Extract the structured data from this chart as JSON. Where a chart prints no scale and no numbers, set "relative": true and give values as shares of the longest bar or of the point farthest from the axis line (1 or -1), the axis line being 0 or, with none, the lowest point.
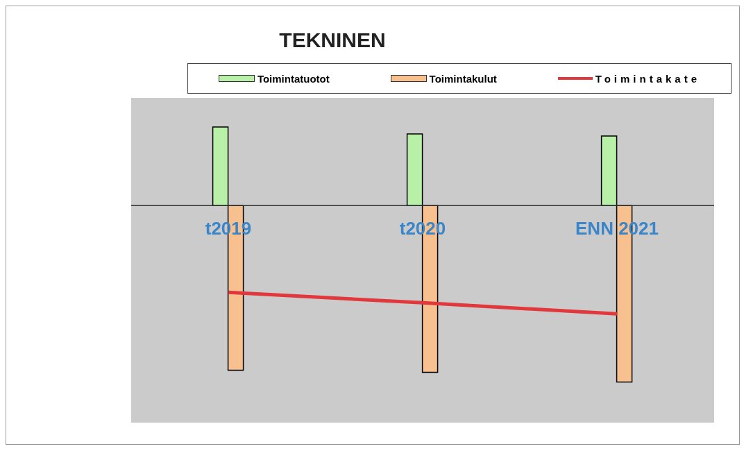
{
  "chart_data": {
    "type": "bar",
    "title": "TEKNINEN",
    "relative": true,
    "categories": [
      "t2019",
      "t2020",
      "ENN 2021"
    ],
    "series": [
      {
        "name": "Toimintatuotot",
        "color": "#b9f0a8",
        "values": [
          0.445,
          0.406,
          0.394
        ]
      },
      {
        "name": "Toimintakulut",
        "color": "#f9c08f",
        "values": [
          -0.933,
          -0.945,
          -1
        ]
      },
      {
        "name": "Toimintakate",
        "type": "line",
        "color": "#e0383c",
        "values": [
          -0.492,
          -0.551,
          -0.614
        ]
      }
    ],
    "legend": "top",
    "marker": "none",
    "line_style": "solid"
  }
}
